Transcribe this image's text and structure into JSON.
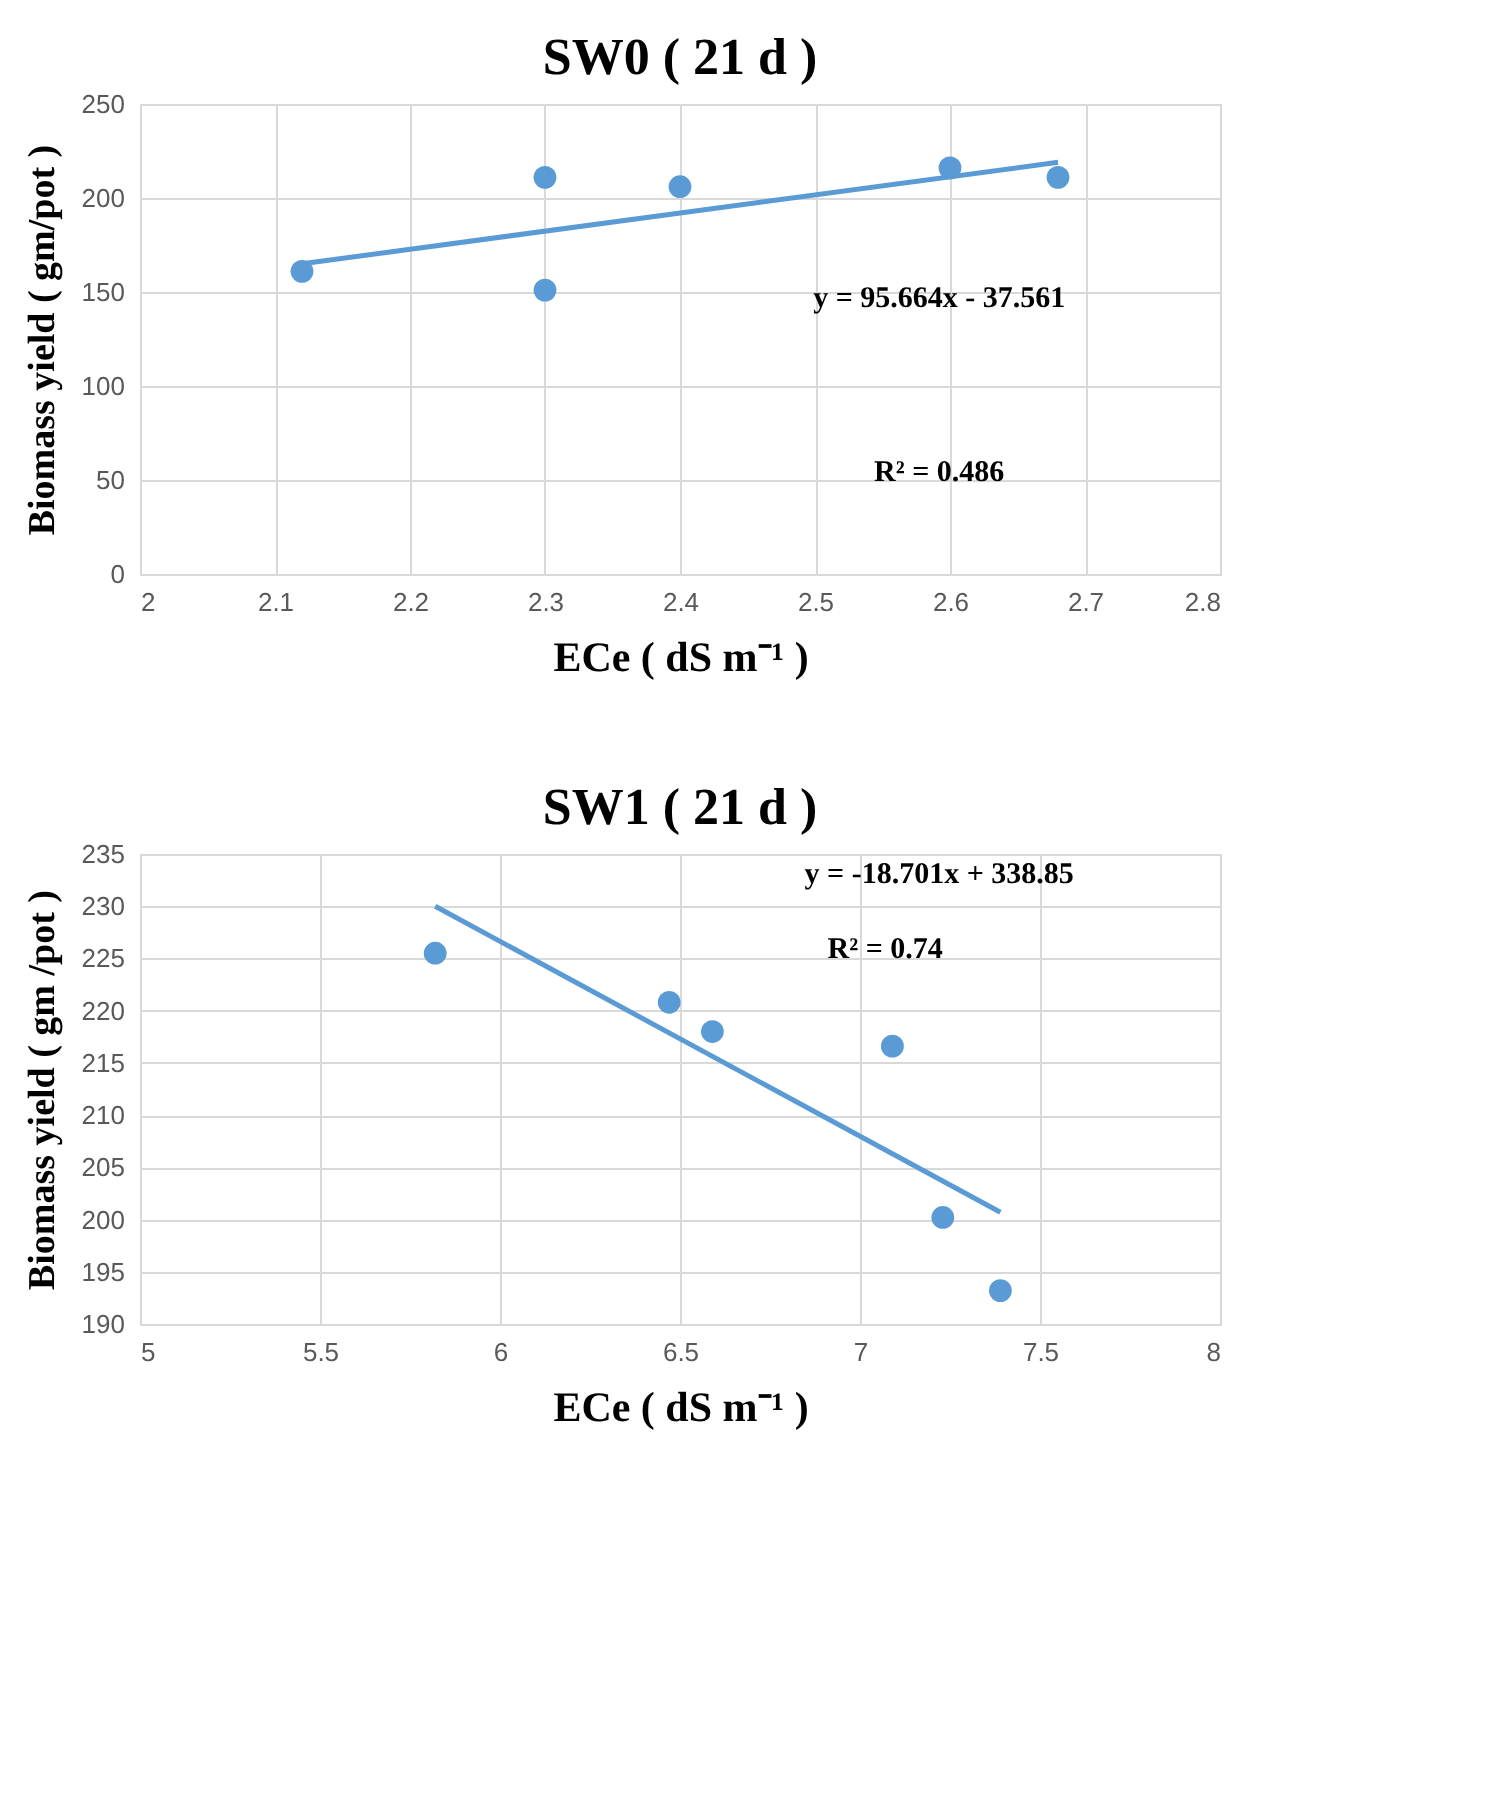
{
  "chart_data": [
    {
      "type": "scatter",
      "title": "SW0 ( 21 d )",
      "xlabel": "ECe ( dS m⁻¹ )",
      "ylabel": "Biomass yield ( gm/pot )",
      "series": [
        {
          "color": "#5b9bd5",
          "marker": "circle",
          "x": [
            2.12,
            2.3,
            2.3,
            2.4,
            2.6,
            2.68
          ],
          "values": [
            161,
            211,
            151,
            206,
            216,
            211
          ]
        },
        {
          "type": "line",
          "color": "#5b9bd5",
          "marker": "none",
          "line_style": "solid",
          "x": [
            2.12,
            2.68
          ],
          "values": [
            165,
            219
          ]
        }
      ],
      "xlim": [
        2,
        2.8
      ],
      "xticks": [
        2,
        2.1,
        2.2,
        2.3,
        2.4,
        2.5,
        2.6,
        2.7,
        2.8
      ],
      "ylim": [
        0,
        250
      ],
      "yticks": [
        0,
        50,
        100,
        150,
        200,
        250
      ],
      "grid": true,
      "annotations": [
        "y = 95.664x - 37.561",
        "R² = 0.486"
      ]
    },
    {
      "type": "scatter",
      "title": "SW1 ( 21 d )",
      "xlabel": "ECe ( dS m⁻¹ )",
      "ylabel": "Biomass yield ( gm /pot )",
      "series": [
        {
          "color": "#5b9bd5",
          "marker": "circle",
          "x": [
            5.82,
            6.47,
            6.59,
            7.09,
            7.23,
            7.39
          ],
          "values": [
            225.5,
            220.8,
            218,
            216.6,
            200.2,
            193.2
          ]
        },
        {
          "type": "line",
          "color": "#5b9bd5",
          "marker": "none",
          "line_style": "solid",
          "x": [
            5.82,
            7.39
          ],
          "values": [
            230,
            200.7
          ]
        }
      ],
      "xlim": [
        5,
        8
      ],
      "xticks": [
        5,
        5.5,
        6,
        6.5,
        7,
        7.5,
        8
      ],
      "ylim": [
        190,
        235
      ],
      "yticks": [
        190,
        195,
        200,
        205,
        210,
        215,
        220,
        225,
        230,
        235
      ],
      "grid": true,
      "annotations": [
        "y = -18.701x + 338.85",
        "R² = 0.74"
      ]
    }
  ]
}
